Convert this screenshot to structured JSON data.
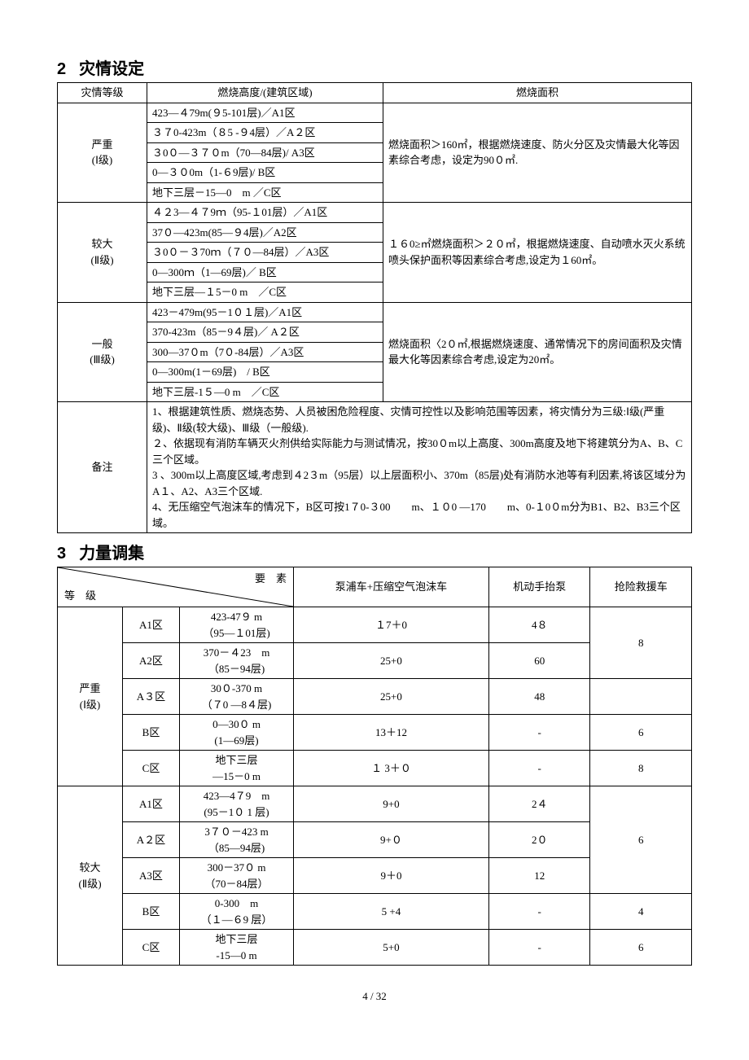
{
  "section2": {
    "num": "2",
    "title": "灾情设定",
    "headers": [
      "灾情等级",
      "燃烧高度/(建筑区域)",
      "燃烧面积"
    ],
    "groups": [
      {
        "level": "严重\n(Ⅰ级)",
        "rows": [
          "423—４79m(９5-101层)／A1区",
          "３７0-423m（８5 -９4层）／A２区",
          "３0０—３７０m（70—84层)/ A3区",
          "0—３０0m（1-６9层)/ B区",
          "地下三层－15—0　m ／C区"
        ],
        "area": "燃烧面积＞160㎡，根据燃烧速度、防火分区及灾情最大化等因素综合考虑，设定为90０㎡."
      },
      {
        "level": "较大\n(Ⅱ级)",
        "rows": [
          "４２3—４７9ｍ（95-１01层）／A1区",
          "37０—423m(85—９4层)／A2区",
          "３0０－３70ｍ（７０—84层）／A3区",
          "0—300ｍ（1—69层)／ B区",
          "地下三层—１5－0 m　／C区"
        ],
        "area": "１６0≥㎡燃烧面积＞２０㎡，根据燃烧速度、自动喷水灭火系统喷头保护面积等因素综合考虑,设定为１60㎡。"
      },
      {
        "level": "一般\n(Ⅲ级)",
        "rows": [
          "423－479m(95－1０１层)／A1区",
          "370-423m（85－9４层)／ A２区",
          "300—37０m（7０-84层）／A3区",
          "0—300m(1－69层)　/ B区",
          "地下三层-1５—0 m　／C区"
        ],
        "area": "燃烧面积〈2０㎡,根据燃烧速度、通常情况下的房间面积及灾情最大化等因素综合考虑,设定为20㎡。"
      }
    ],
    "remarks_label": "备注",
    "remarks": "1、根据建筑性质、燃烧态势、人员被困危险程度、灾情可控性以及影响范围等因素，将灾情分为三级:Ⅰ级(严重级)、Ⅱ级(较大级)、Ⅲ级（一般级).\n２、依据现有消防车辆灭火剂供给实际能力与测试情况，按30０m以上高度、300m高度及地下将建筑分为A、B、C三个区域。\n3 、300m以上高度区域,考虑到４2３m（95层）以上层面积小、370m（85层)处有消防水池等有利因素,将该区域分为A１、A2、A3三个区域.\n4、无压缩空气泡沫车的情况下，B区可按1７0-３00　　m、１０0 —170　　m、0-１0０m分为B1、B2、B3三个区域。"
  },
  "section3": {
    "num": "3",
    "title": "力量调集",
    "diag_top": "要　素",
    "diag_bot": "等　级",
    "headers": [
      "泵浦车+压缩空气泡沫车",
      "机动手抬泵",
      "抢险救援车"
    ],
    "groups": [
      {
        "level": "严重\n(Ⅰ级)",
        "rows": [
          {
            "zone": "A1区",
            "range": "423-47９ m\n（95—１01层)",
            "c1": "１7＋0",
            "c2": "4８",
            "c3": null
          },
          {
            "zone": "A2区",
            "range": "370－４23　m\n（85－94层)",
            "c1": "25+0",
            "c2": "60",
            "c3": "8",
            "c3span": 2,
            "c3start": 0
          },
          {
            "zone": "A３区",
            "range": "30０-370 m\n（７0 —8４层)",
            "c1": "25+0",
            "c2": "48",
            "c3": null
          },
          {
            "zone": "B区",
            "range": "0—30０ m\n(1—69层)",
            "c1": "13＋12",
            "c2": "-",
            "c3": "6"
          },
          {
            "zone": "C区",
            "range": "地下三层\n—15－0 m",
            "c1": "１ 3＋０",
            "c2": "-",
            "c3": "8"
          }
        ]
      },
      {
        "level": "较大\n(Ⅱ级)",
        "rows": [
          {
            "zone": "A1区",
            "range": "423—4７9　m\n(95－1０ 1 层)",
            "c1": "9+0",
            "c2": "2４",
            "c3": null
          },
          {
            "zone": "A２区",
            "range": "3７０－423 m\n（85—94层)",
            "c1": "9+０",
            "c2": "2０",
            "c3": "6",
            "c3span": 3,
            "c3start": 0
          },
          {
            "zone": "A3区",
            "range": "300－37０ m\n（70－84层）",
            "c1": "9＋0",
            "c2": "12",
            "c3": null
          },
          {
            "zone": "B区",
            "range": "0-300　m\n（１—６9 层）",
            "c1": "5 +4",
            "c2": "-",
            "c3": "4"
          },
          {
            "zone": "C区",
            "range": "地下三层\n-15—0 m",
            "c1": "5+0",
            "c2": "-",
            "c3": "6"
          }
        ]
      }
    ]
  },
  "footer": "4 / 32"
}
